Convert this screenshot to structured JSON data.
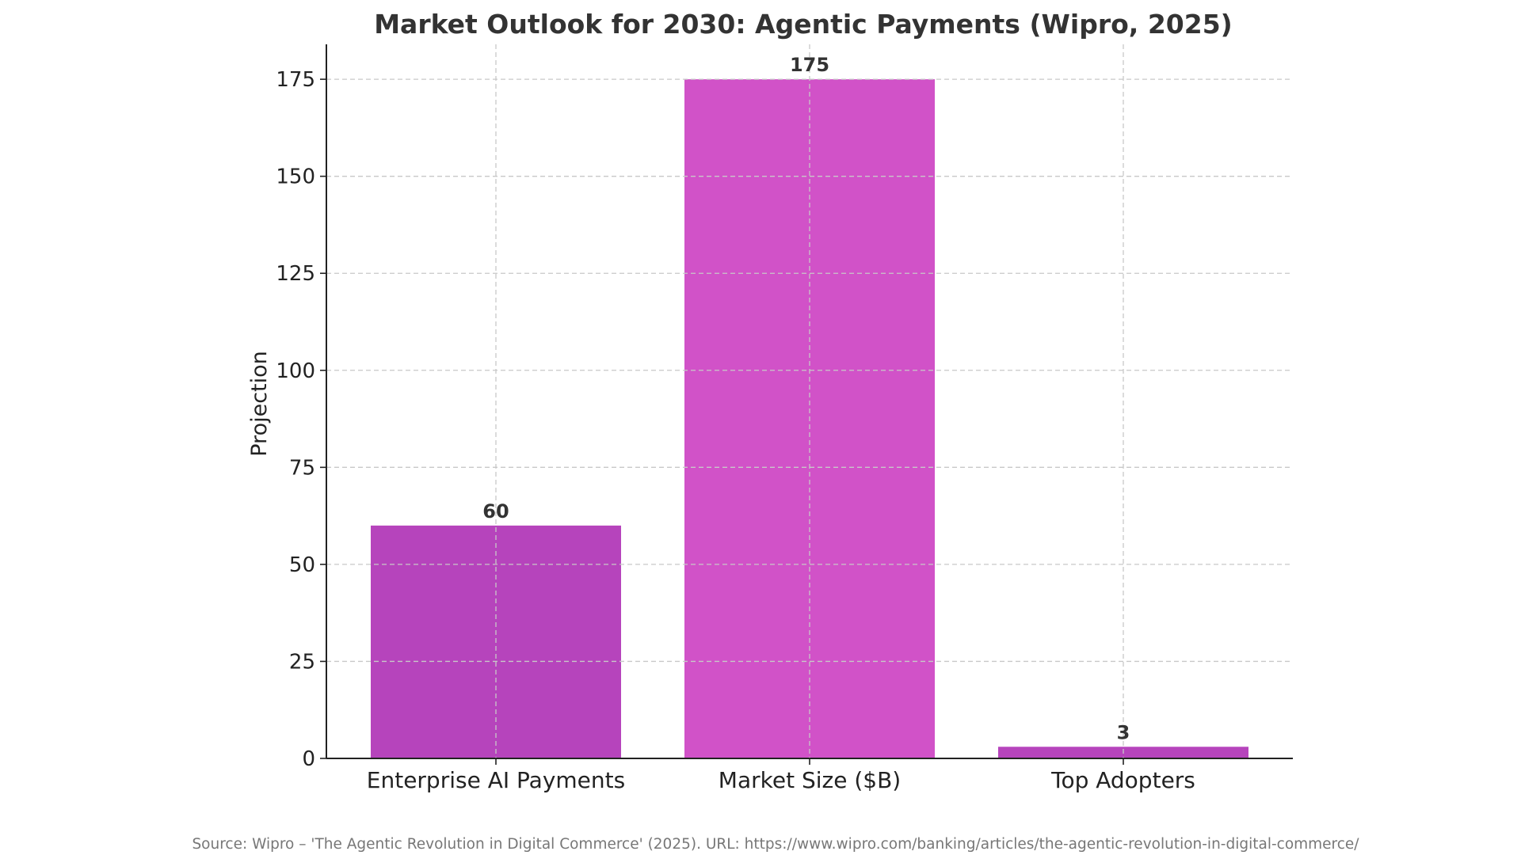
{
  "chart_data": {
    "type": "bar",
    "title": "Market Outlook for 2030: Agentic Payments (Wipro, 2025)",
    "xlabel": "",
    "ylabel": "Projection",
    "categories": [
      "Enterprise AI Payments",
      "Market Size ($B)",
      "Top Adopters"
    ],
    "values": [
      60,
      175,
      3
    ],
    "value_labels": [
      "60",
      "175",
      "3"
    ],
    "bar_colors": [
      "#b644bc",
      "#d152c8",
      "#b644bc"
    ],
    "ylim": [
      0,
      184
    ],
    "yticks": [
      0,
      25,
      50,
      75,
      100,
      125,
      150,
      175
    ],
    "grid": true,
    "legend": "none"
  },
  "source_note": "Source: Wipro – 'The Agentic Revolution in Digital Commerce' (2025). URL: https://www.wipro.com/banking/articles/the-agentic-revolution-in-digital-commerce/"
}
